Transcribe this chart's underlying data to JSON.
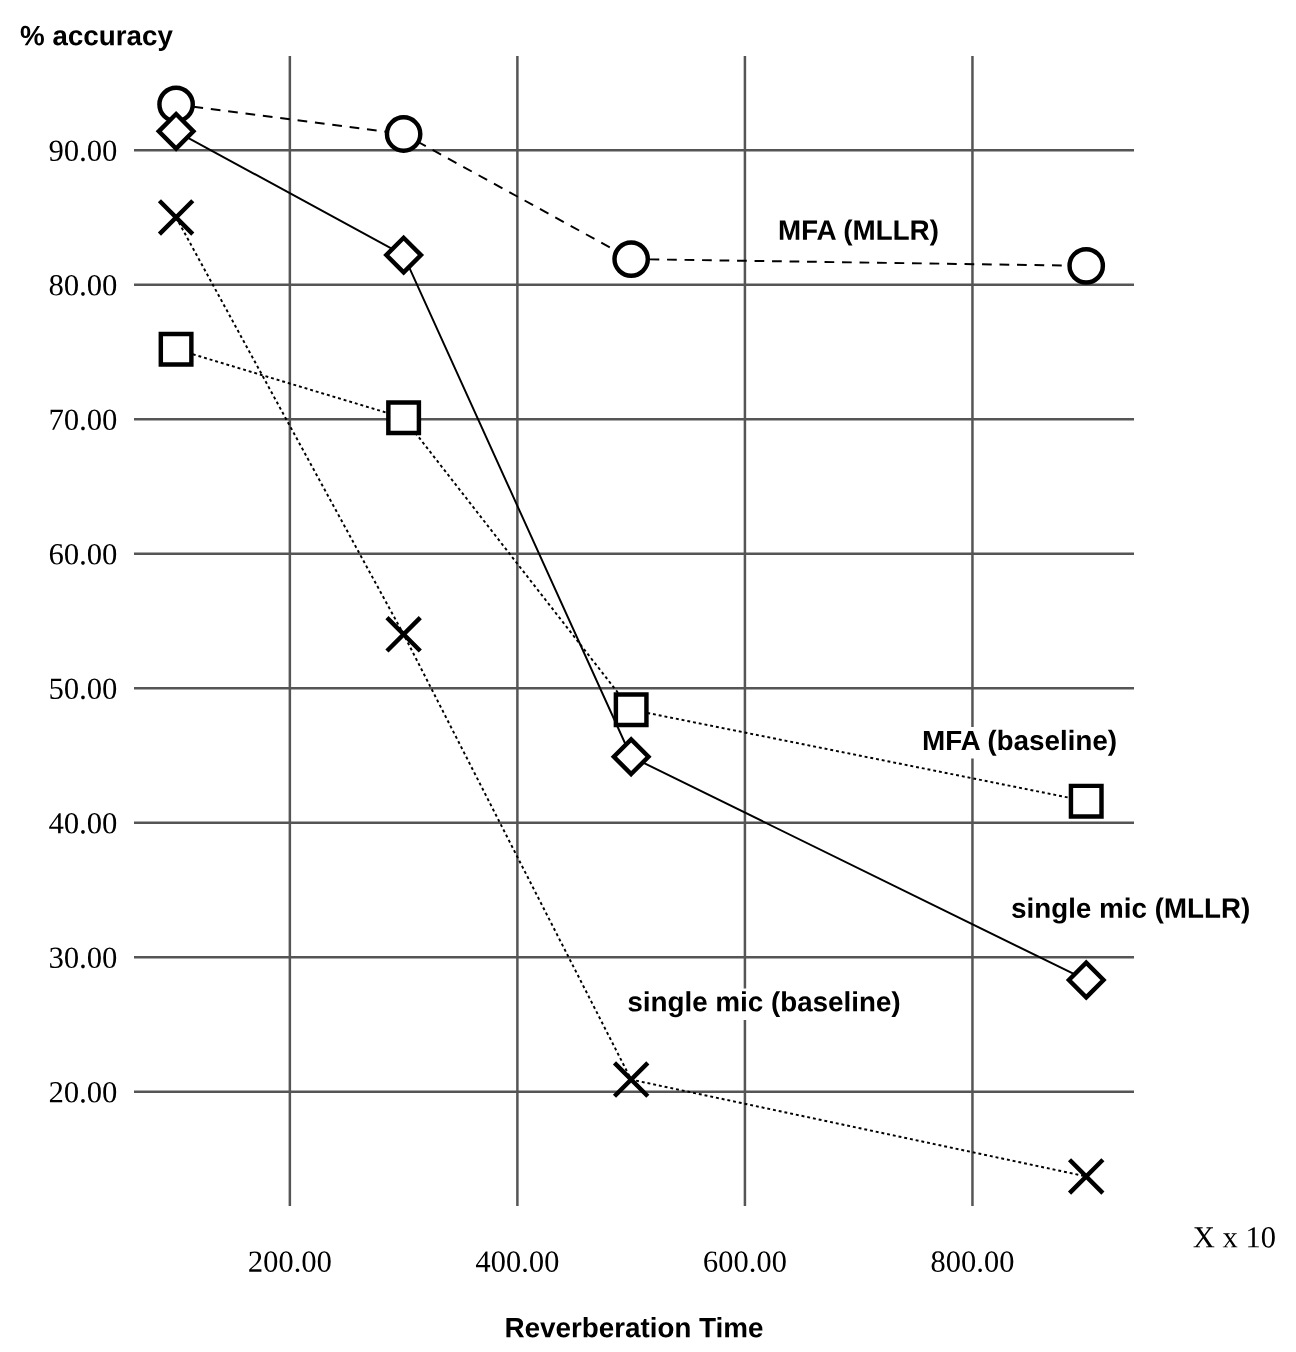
{
  "chart_data": {
    "type": "line",
    "xlabel": "Reverberation Time",
    "ylabel": "% accuracy",
    "x": [
      100,
      300,
      500,
      900
    ],
    "series": [
      {
        "name": "MFA (MLLR)",
        "color": "#000000",
        "marker": "circle",
        "line_style": "dashed",
        "values": [
          93.4,
          91.2,
          81.9,
          81.4
        ]
      },
      {
        "name": "single mic (MLLR)",
        "color": "#000000",
        "marker": "diamond",
        "line_style": "solid",
        "values": [
          91.4,
          82.2,
          44.9,
          28.3
        ]
      },
      {
        "name": "MFA (baseline)",
        "color": "#000000",
        "marker": "square",
        "line_style": "dotted",
        "values": [
          75.2,
          70.1,
          48.4,
          41.6
        ]
      },
      {
        "name": "single mic (baseline)",
        "color": "#000000",
        "marker": "cross",
        "line_style": "dotted",
        "values": [
          85.0,
          54.0,
          20.9,
          13.7
        ]
      }
    ],
    "xlim": [
      63,
      942
    ],
    "ylim": [
      11.5,
      97
    ],
    "xticks": [
      {
        "value": 200,
        "label": "200.00"
      },
      {
        "value": 400,
        "label": "400.00"
      },
      {
        "value": 600,
        "label": "600.00"
      },
      {
        "value": 800,
        "label": "800.00"
      }
    ],
    "yticks": [
      {
        "value": 20,
        "label": "20.00"
      },
      {
        "value": 30,
        "label": "30.00"
      },
      {
        "value": 40,
        "label": "40.00"
      },
      {
        "value": 50,
        "label": "50.00"
      },
      {
        "value": 60,
        "label": "60.00"
      },
      {
        "value": 70,
        "label": "70.00"
      },
      {
        "value": 80,
        "label": "80.00"
      },
      {
        "value": 90,
        "label": "90.00"
      }
    ],
    "grid": true,
    "legend": false,
    "annotations": [
      "X x 10"
    ]
  }
}
